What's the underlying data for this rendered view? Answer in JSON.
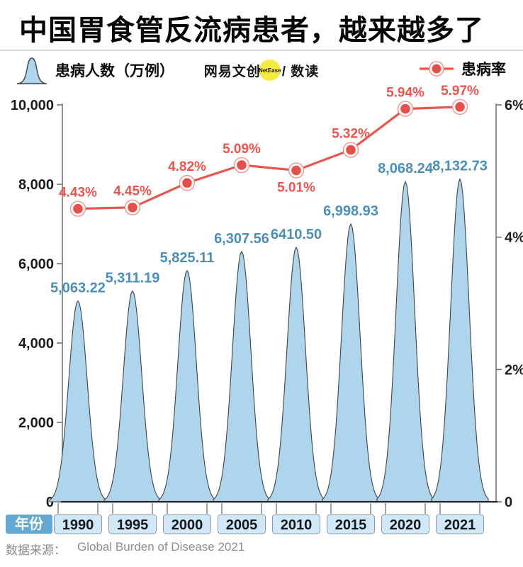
{
  "title": "中国胃食管反流病患者，越来越多了",
  "legend": {
    "patients_label": "患病人数（万例）",
    "rate_label": "患病率"
  },
  "logo": {
    "brand": "网易文创",
    "badge": "NetEase",
    "channel": "/ 数读"
  },
  "source": {
    "label": "数据来源：",
    "value": "Global Burden of Disease 2021"
  },
  "colors": {
    "rate_red": "#E7564F",
    "rate_dot_fill": "#E4514A",
    "rate_dot_ring": "#F0938D",
    "bell_fill": "#AFD5EC",
    "bell_stroke": "#3E4449",
    "patients_label_blue": "#4A8FB5",
    "axis_gray": "#6E6E6E",
    "baseline_dark": "#26282B",
    "tick_text": "#1D1D1F",
    "year_box_fill": "#D0E8F8",
    "year_box_border": "#8E9AA3",
    "year_title_bg": "#64A9D2",
    "year_title_text": "#FFFFFF",
    "logo_yellow": "#F6E93F",
    "source_gray": "#8C8C8C",
    "divider_gray": "#D8D8D8"
  },
  "chart_data": {
    "type": "combo",
    "categories": [
      "1990",
      "1995",
      "2000",
      "2005",
      "2010",
      "2015",
      "2020",
      "2021"
    ],
    "x_axis_title": "年份",
    "series": [
      {
        "name": "患病人数（万例）",
        "type": "area-bell",
        "axis": "left",
        "values": [
          5063.22,
          5311.19,
          5825.11,
          6307.56,
          6410.5,
          6998.93,
          8068.24,
          8132.73
        ],
        "labels": [
          "5,063.22",
          "5,311.19",
          "5,825.11",
          "6,307.56",
          "6410.50",
          "6,998.93",
          "8,068.24",
          "8,132.73"
        ]
      },
      {
        "name": "患病率",
        "type": "line",
        "axis": "right",
        "values": [
          4.43,
          4.45,
          4.82,
          5.09,
          5.01,
          5.32,
          5.94,
          5.97
        ],
        "labels": [
          "4.43%",
          "4.45%",
          "4.82%",
          "5.09%",
          "5.01%",
          "5.32%",
          "5.94%",
          "5.97%"
        ],
        "label_below_indices": [
          4
        ]
      }
    ],
    "left_axis": {
      "min": 0,
      "max": 10000,
      "tick_step": 2000,
      "tick_labels": [
        "0",
        "2,000",
        "4,000",
        "6,000",
        "8,000",
        "10,000"
      ]
    },
    "right_axis": {
      "min": 0,
      "max": 6,
      "tick_values": [
        0,
        2,
        4,
        6
      ],
      "tick_labels": [
        "0",
        "2%",
        "4%",
        "6%"
      ]
    },
    "grid": false,
    "legend_position": "top"
  }
}
